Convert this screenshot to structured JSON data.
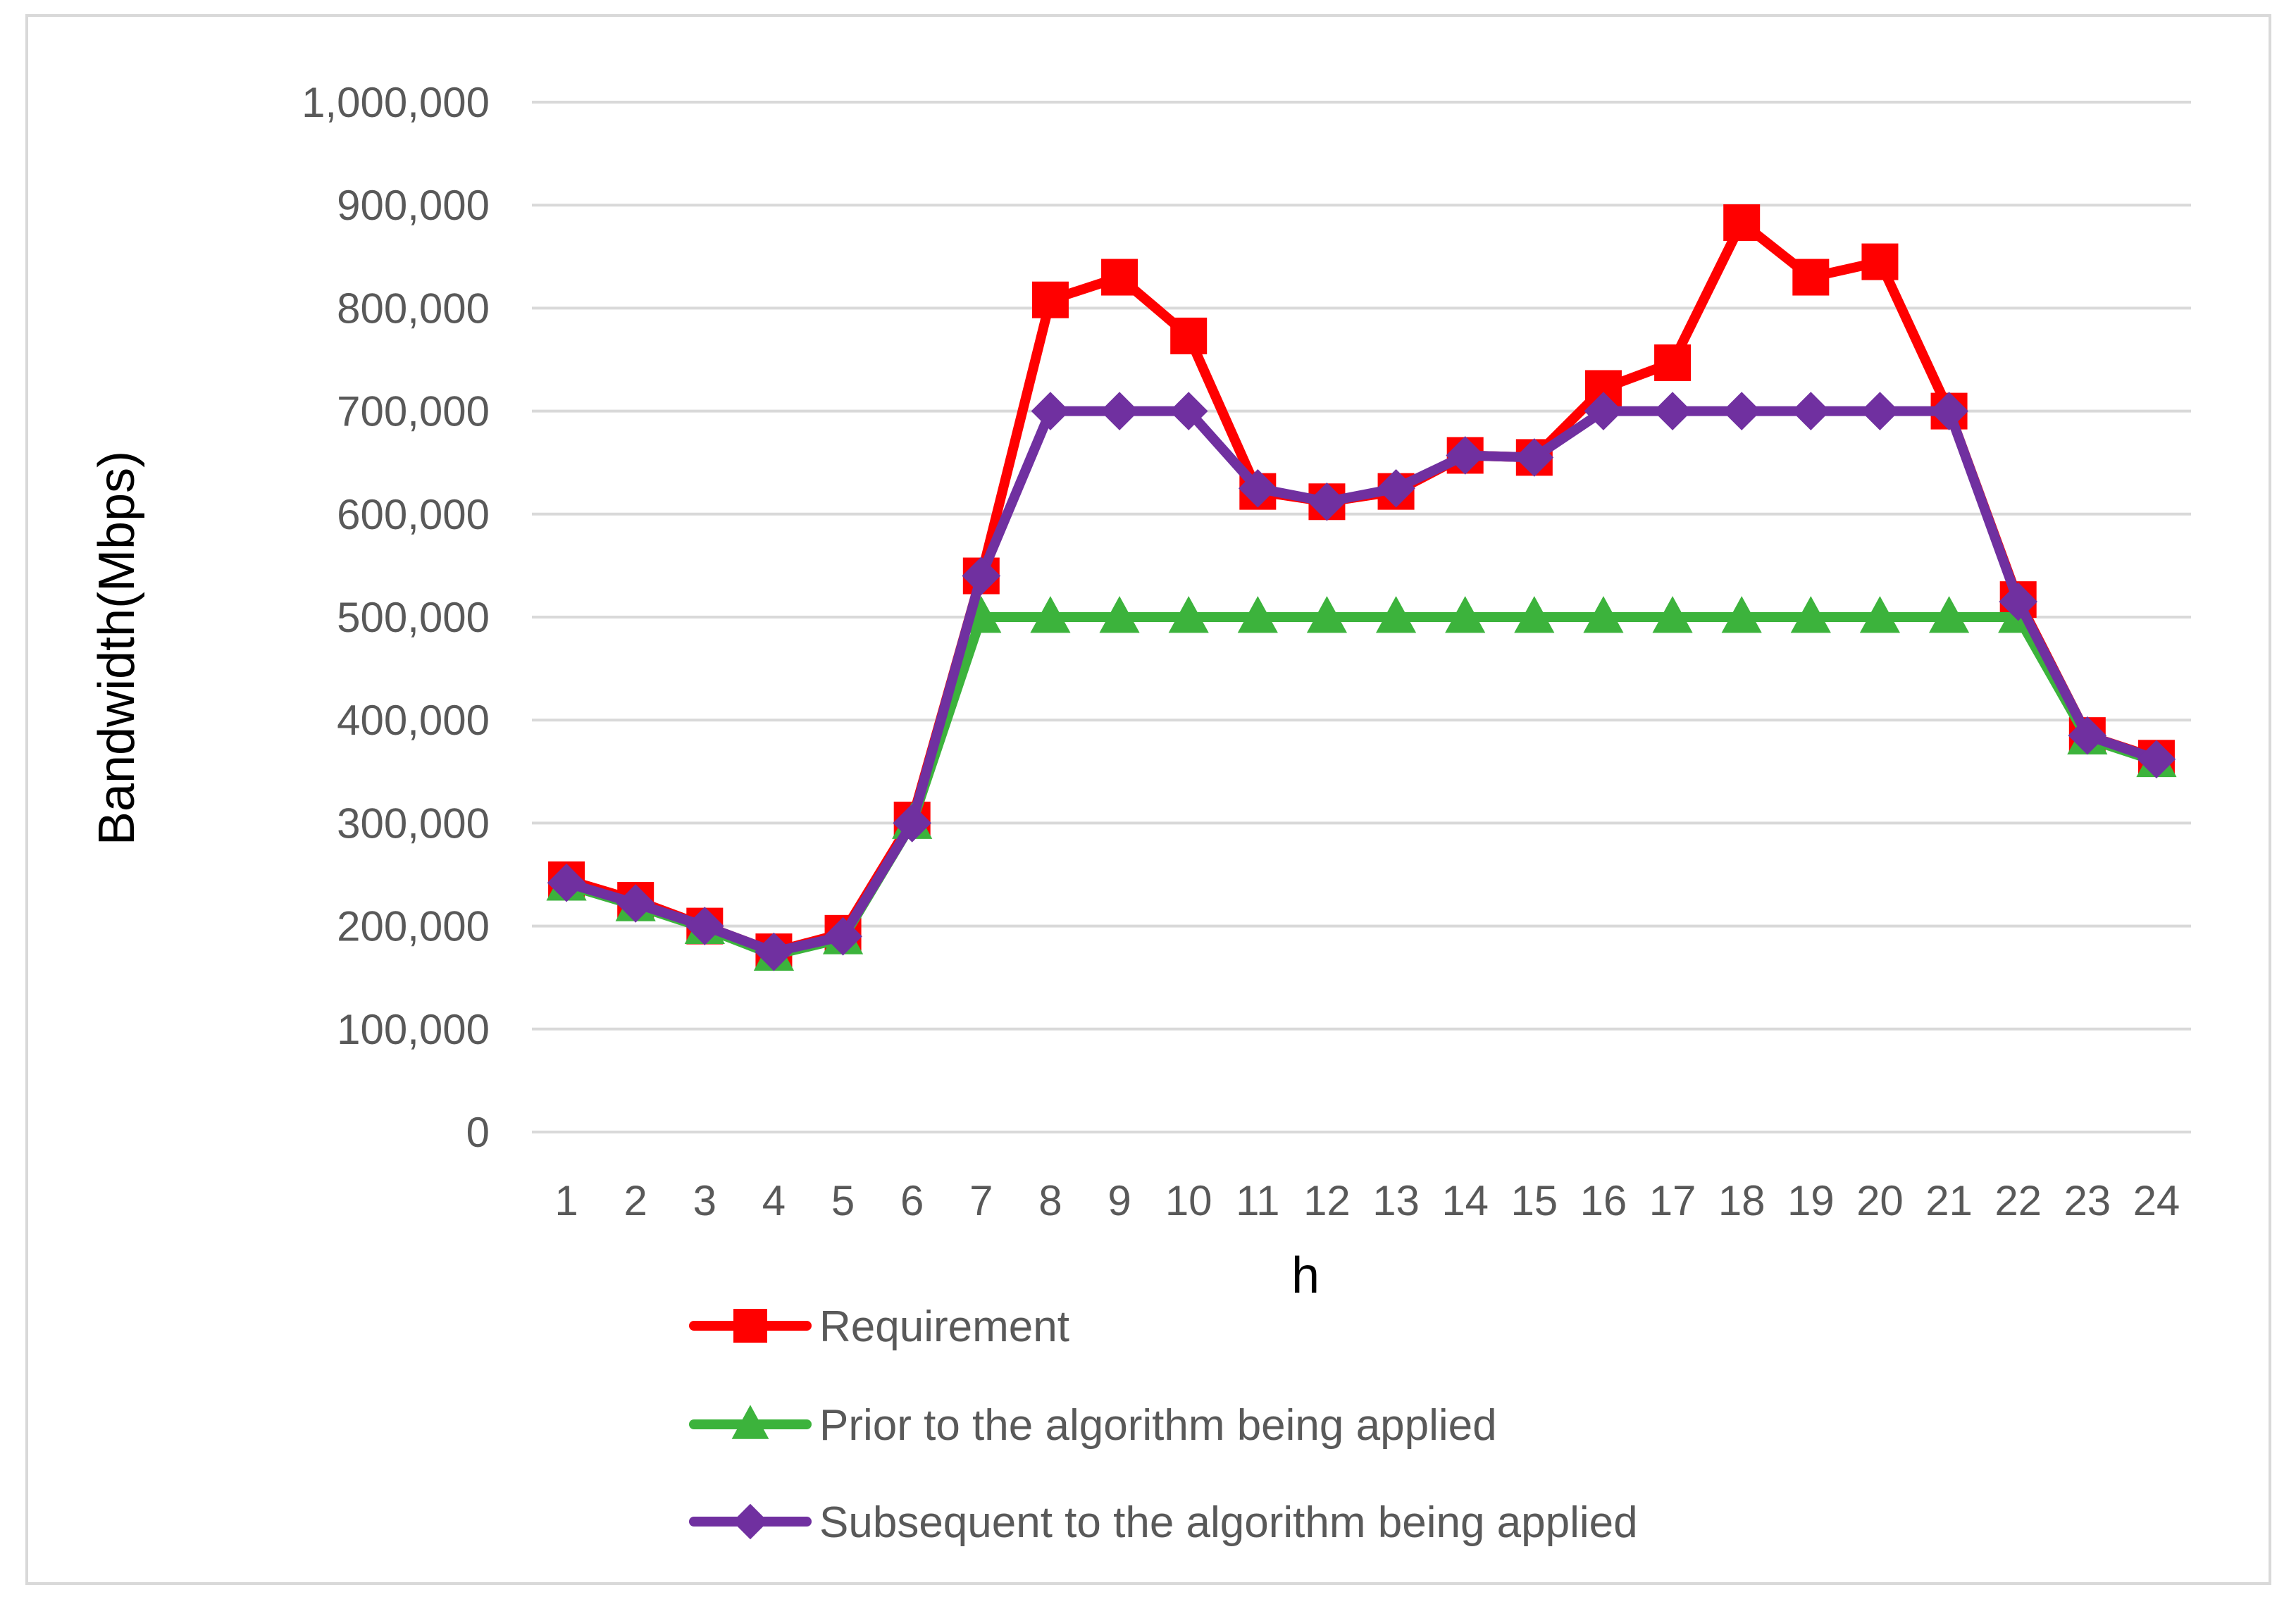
{
  "chart_data": {
    "type": "line",
    "title": "",
    "xlabel": "h",
    "ylabel": "Bandwidth(Mbps)",
    "ylim": [
      0,
      1000000
    ],
    "yticks": [
      0,
      100000,
      200000,
      300000,
      400000,
      500000,
      600000,
      700000,
      800000,
      900000,
      1000000
    ],
    "ytick_labels": [
      "0",
      "100,000",
      "200,000",
      "300,000",
      "400,000",
      "500,000",
      "600,000",
      "700,000",
      "800,000",
      "900,000",
      "1,000,000"
    ],
    "categories": [
      "1",
      "2",
      "3",
      "4",
      "5",
      "6",
      "7",
      "8",
      "9",
      "10",
      "11",
      "12",
      "13",
      "14",
      "15",
      "16",
      "17",
      "18",
      "19",
      "20",
      "21",
      "22",
      "23",
      "24"
    ],
    "grid": true,
    "legend_position": "bottom",
    "series": [
      {
        "name": "Requirement",
        "color": "#ff0000",
        "marker": "square",
        "values": [
          245000,
          225000,
          200000,
          175000,
          193000,
          303000,
          540000,
          808000,
          830000,
          773000,
          622000,
          612000,
          622000,
          657000,
          655000,
          722000,
          747000,
          883000,
          830000,
          845000,
          700000,
          517000,
          385000,
          363000
        ]
      },
      {
        "name": "Prior to the algorithm being applied",
        "color": "#3cb33c",
        "marker": "triangle",
        "values": [
          240000,
          220000,
          198000,
          172000,
          188000,
          300000,
          500000,
          500000,
          500000,
          500000,
          500000,
          500000,
          500000,
          500000,
          500000,
          500000,
          500000,
          500000,
          500000,
          500000,
          500000,
          500000,
          382000,
          360000
        ]
      },
      {
        "name": "Subsequent to the algorithm being applied",
        "color": "#7030a0",
        "marker": "diamond",
        "values": [
          242000,
          222000,
          200000,
          175000,
          190000,
          300000,
          540000,
          700000,
          700000,
          700000,
          625000,
          612000,
          625000,
          657000,
          655000,
          700000,
          700000,
          700000,
          700000,
          700000,
          700000,
          515000,
          385000,
          362000
        ]
      }
    ]
  }
}
